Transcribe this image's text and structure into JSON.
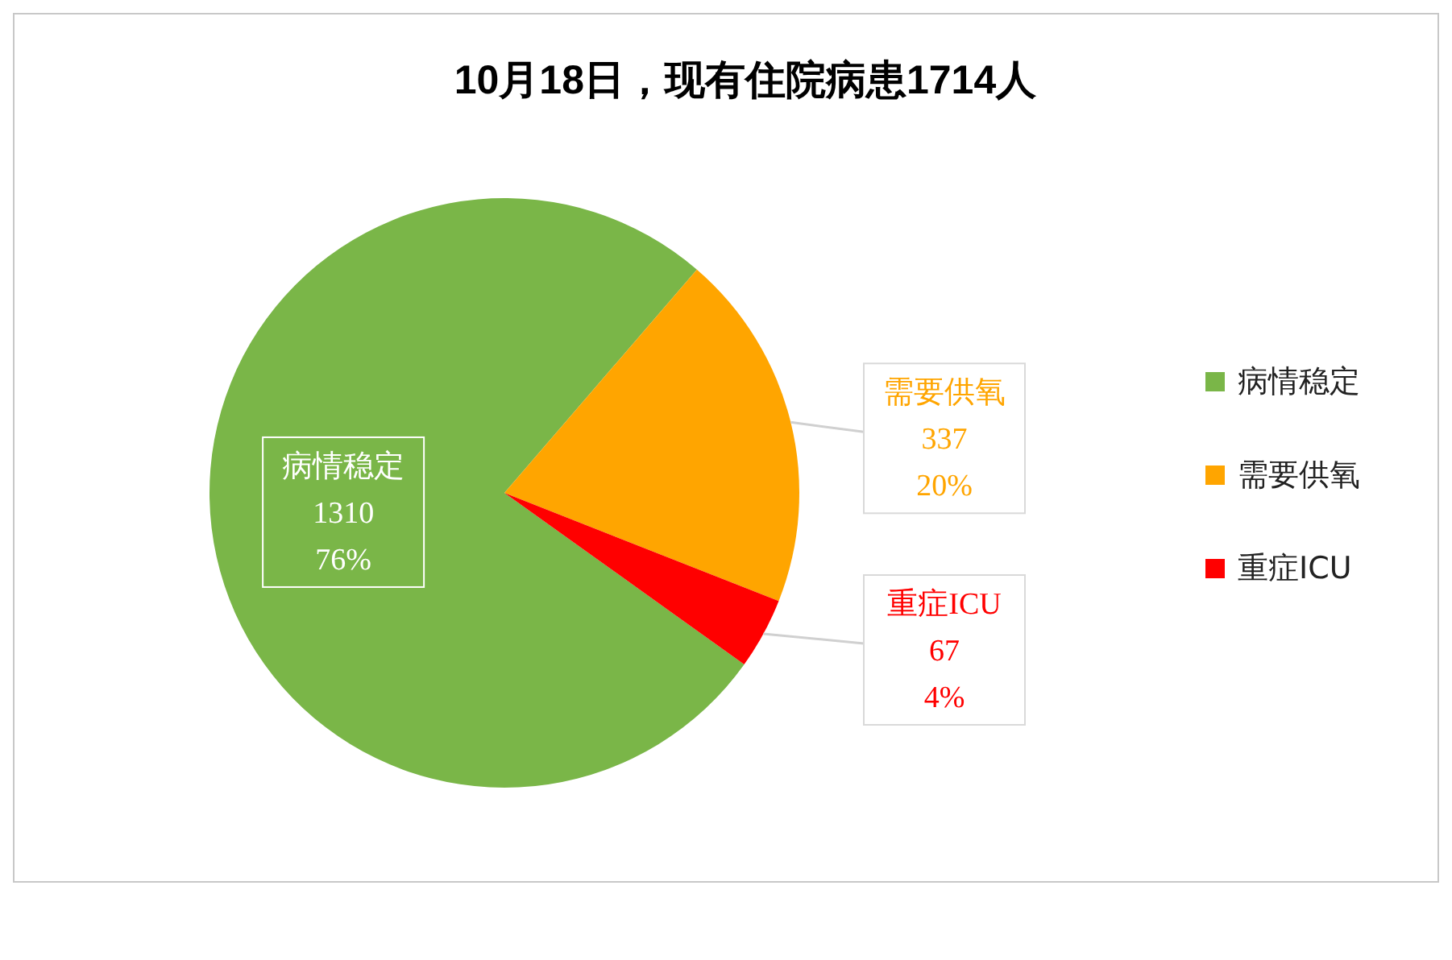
{
  "chart_data": {
    "type": "pie",
    "title": "10月18日，现有住院病患1714人",
    "categories": [
      "病情稳定",
      "需要供氧",
      "重症ICU"
    ],
    "values": [
      1310,
      337,
      67
    ],
    "colors": [
      "#7ab648",
      "#ffa500",
      "#ff0000"
    ],
    "value_labels": [
      "1310\n76%",
      "337\n20%",
      "67\n4%"
    ],
    "legend": "right"
  }
}
